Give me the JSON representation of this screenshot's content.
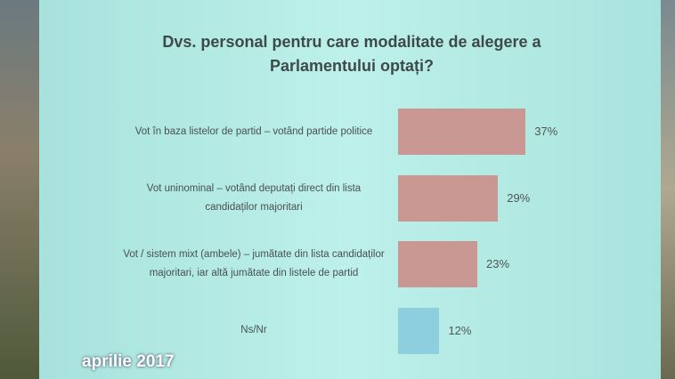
{
  "chart_data": {
    "type": "bar",
    "orientation": "horizontal",
    "title": "Dvs. personal pentru care modalitate de alegere a Parlamentului  optați?",
    "categories": [
      "Vot în baza listelor de partid – votând partide politice",
      "Vot uninominal – votând deputați direct din lista candidaților majoritari",
      "Vot / sistem mixt (ambele) – jumătate din lista candidaților majoritari, iar altă jumătate din listele de partid",
      "Ns/Nr"
    ],
    "values": [
      37,
      29,
      23,
      12
    ],
    "value_labels": [
      "37%",
      "29%",
      "23%",
      "12%"
    ],
    "colors": [
      "#c99893",
      "#c99893",
      "#c99893",
      "#8ecfdf"
    ],
    "caption": "aprilie 2017"
  }
}
